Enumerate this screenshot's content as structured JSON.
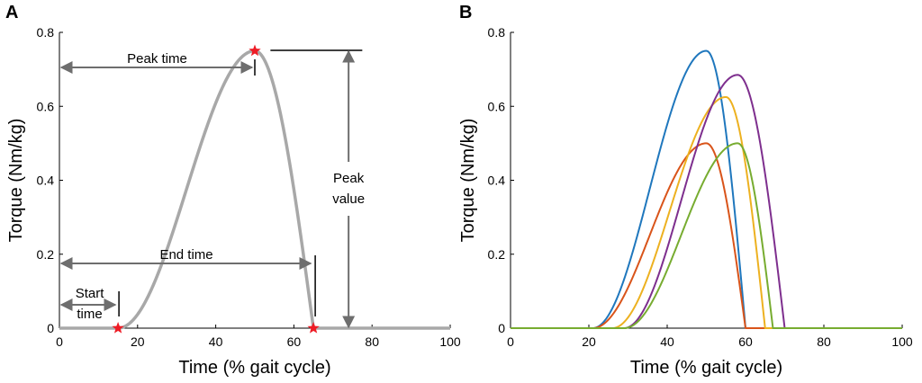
{
  "chart_data": [
    {
      "panel": "A",
      "type": "line",
      "xlabel": "Time (% gait cycle)",
      "ylabel": "Torque (Nm/kg)",
      "xlim": [
        0,
        100
      ],
      "ylim": [
        0,
        0.8
      ],
      "xticks": [
        "0",
        "20",
        "40",
        "60",
        "80",
        "100"
      ],
      "yticks": [
        "0",
        "0.2",
        "0.4",
        "0.6",
        "0.8"
      ],
      "series": [
        {
          "name": "torque profile",
          "color": "#a8a8a8",
          "start": 15,
          "peak_time": 50,
          "peak_value": 0.75,
          "end": 65
        }
      ],
      "markers": [
        {
          "name": "start-marker",
          "x": 15,
          "y": 0
        },
        {
          "name": "peak-marker",
          "x": 50,
          "y": 0.75
        },
        {
          "name": "end-marker",
          "x": 65,
          "y": 0
        }
      ],
      "annotations": {
        "peak_time": "Peak time",
        "end_time": "End time",
        "start_time_line1": "Start",
        "start_time_line2": "time",
        "peak_value_line1": "Peak",
        "peak_value_line2": "value"
      }
    },
    {
      "panel": "B",
      "type": "line",
      "xlabel": "Time (% gait cycle)",
      "ylabel": "Torque (Nm/kg)",
      "xlim": [
        0,
        100
      ],
      "ylim": [
        0,
        0.8
      ],
      "xticks": [
        "0",
        "20",
        "40",
        "60",
        "80",
        "100"
      ],
      "yticks": [
        "0",
        "0.2",
        "0.4",
        "0.6",
        "0.8"
      ],
      "series": [
        {
          "name": "blue",
          "color": "#1f77bd",
          "start": 21,
          "peak_time": 50,
          "peak_value": 0.75,
          "end": 60
        },
        {
          "name": "orange",
          "color": "#d9541a",
          "start": 21,
          "peak_time": 50,
          "peak_value": 0.5,
          "end": 60
        },
        {
          "name": "yellow",
          "color": "#edb120",
          "start": 26,
          "peak_time": 55,
          "peak_value": 0.625,
          "end": 65
        },
        {
          "name": "purple",
          "color": "#7e2f8e",
          "start": 29,
          "peak_time": 58,
          "peak_value": 0.685,
          "end": 70
        },
        {
          "name": "green",
          "color": "#77ac30",
          "start": 29,
          "peak_time": 58,
          "peak_value": 0.5,
          "end": 67
        }
      ]
    }
  ]
}
